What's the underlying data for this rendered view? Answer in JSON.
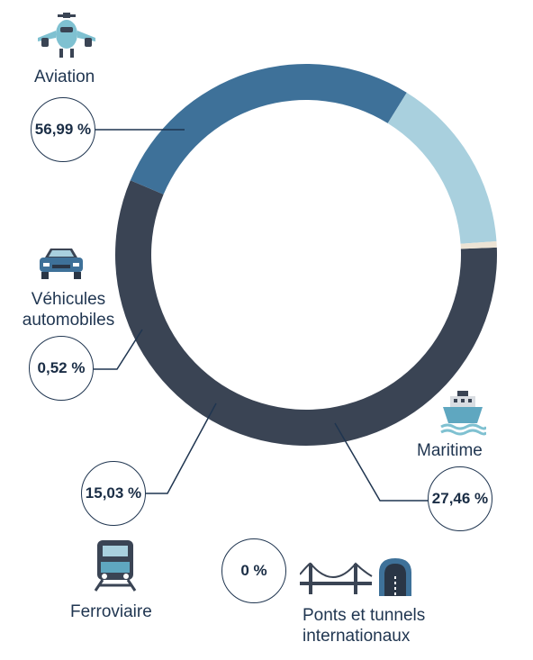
{
  "chart_data": {
    "type": "pie",
    "subtype": "donut",
    "categories": [
      "Aviation",
      "Maritime",
      "Ferroviaire",
      "Véhicules automobiles",
      "Ponts et tunnels internationaux"
    ],
    "values": [
      56.99,
      27.46,
      15.03,
      0.52,
      0
    ],
    "value_labels": [
      "56,99 %",
      "27,46 %",
      "15,03 %",
      "0,52 %",
      "0 %"
    ],
    "colors": [
      "#3a4454",
      "#3e7199",
      "#a9d0de",
      "#ece3d4",
      "#d9d9d9"
    ]
  }
}
